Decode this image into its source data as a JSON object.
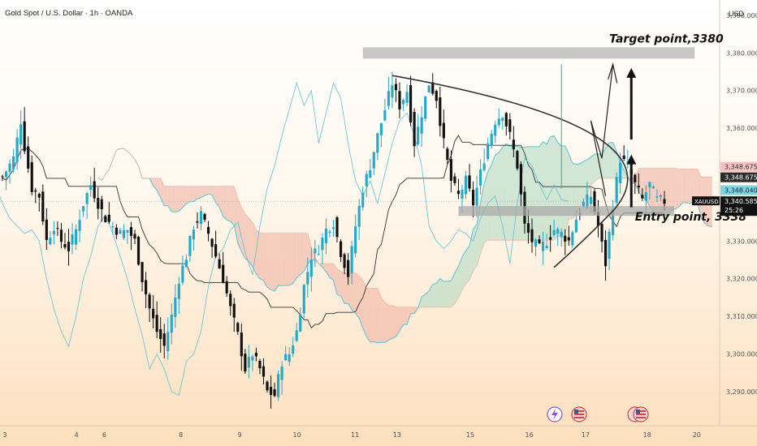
{
  "chart_data": {
    "type": "candlestick",
    "title": "Gold Spot / U.S. Dollar · 1h · OANDA",
    "currency": "USD",
    "symbol": "XAUUSD",
    "y_ticks": [
      3290,
      3300,
      3310,
      3320,
      3330,
      3340,
      3350,
      3360,
      3370,
      3380,
      3390
    ],
    "y_tick_labels": [
      "3,290.000",
      "3,300.000",
      "3,310.000",
      "3,320.000",
      "3,330.000",
      "3,340.000",
      "3,350.000",
      "3,360.000",
      "3,370.000",
      "3,380.000",
      "3,390.000"
    ],
    "ylim": [
      3282,
      3393
    ],
    "x_ticks": [
      "3",
      "4",
      "6",
      "8",
      "9",
      "10",
      "11",
      "13",
      "15",
      "16",
      "17",
      "18",
      "20"
    ],
    "x_tick_bars": [
      3,
      88,
      121,
      212,
      282,
      350,
      419,
      469,
      556,
      626,
      693,
      766,
      825
    ],
    "bar_count": 190,
    "close_path": [
      [
        0,
        3347
      ],
      [
        3,
        3352
      ],
      [
        5,
        3362
      ],
      [
        6,
        3355
      ],
      [
        8,
        3344
      ],
      [
        10,
        3342
      ],
      [
        11,
        3336
      ],
      [
        12,
        3330
      ],
      [
        14,
        3334
      ],
      [
        16,
        3330
      ],
      [
        18,
        3328
      ],
      [
        20,
        3333
      ],
      [
        22,
        3340
      ],
      [
        24,
        3345
      ],
      [
        26,
        3340
      ],
      [
        28,
        3336
      ],
      [
        30,
        3334
      ],
      [
        32,
        3332
      ],
      [
        34,
        3333
      ],
      [
        36,
        3330
      ],
      [
        38,
        3320
      ],
      [
        40,
        3312
      ],
      [
        42,
        3306
      ],
      [
        44,
        3302
      ],
      [
        46,
        3310
      ],
      [
        48,
        3320
      ],
      [
        50,
        3326
      ],
      [
        52,
        3334
      ],
      [
        54,
        3337
      ],
      [
        56,
        3332
      ],
      [
        58,
        3326
      ],
      [
        60,
        3320
      ],
      [
        62,
        3312
      ],
      [
        64,
        3305
      ],
      [
        66,
        3296
      ],
      [
        68,
        3300
      ],
      [
        70,
        3296
      ],
      [
        72,
        3290
      ],
      [
        74,
        3289
      ],
      [
        76,
        3298
      ],
      [
        78,
        3300
      ],
      [
        80,
        3306
      ],
      [
        82,
        3318
      ],
      [
        84,
        3326
      ],
      [
        86,
        3328
      ],
      [
        88,
        3333
      ],
      [
        90,
        3335
      ],
      [
        92,
        3327
      ],
      [
        94,
        3321
      ],
      [
        96,
        3334
      ],
      [
        98,
        3344
      ],
      [
        100,
        3350
      ],
      [
        102,
        3358
      ],
      [
        104,
        3365
      ],
      [
        106,
        3372
      ],
      [
        108,
        3366
      ],
      [
        110,
        3370
      ],
      [
        112,
        3356
      ],
      [
        114,
        3364
      ],
      [
        116,
        3372
      ],
      [
        118,
        3368
      ],
      [
        120,
        3356
      ],
      [
        122,
        3346
      ],
      [
        124,
        3342
      ],
      [
        126,
        3346
      ],
      [
        128,
        3340
      ],
      [
        130,
        3348
      ],
      [
        132,
        3356
      ],
      [
        134,
        3362
      ],
      [
        136,
        3364
      ],
      [
        138,
        3358
      ],
      [
        140,
        3350
      ],
      [
        142,
        3334
      ],
      [
        144,
        3330
      ],
      [
        146,
        3328
      ],
      [
        148,
        3330
      ],
      [
        150,
        3333
      ],
      [
        152,
        3332
      ],
      [
        154,
        3330
      ],
      [
        156,
        3336
      ],
      [
        158,
        3340
      ],
      [
        160,
        3342
      ],
      [
        162,
        3334
      ],
      [
        164,
        3324
      ],
      [
        166,
        3340
      ],
      [
        168,
        3352
      ],
      [
        170,
        3350
      ],
      [
        172,
        3345
      ],
      [
        174,
        3341
      ],
      [
        176,
        3345
      ],
      [
        178,
        3341
      ],
      [
        180,
        3340.585
      ]
    ],
    "levels": {
      "entry": 3338,
      "target": 3380,
      "last_price": 3340.585,
      "price_line": 3340.585
    },
    "annotations": {
      "target_label": "Target point,3380",
      "entry_label": "Entry point, 3338"
    },
    "price_tags": [
      {
        "value": 3348.675,
        "text": "3,348.675",
        "bg": "#f5c1c1",
        "fg": "#333"
      },
      {
        "value": 3348.675,
        "text": "3,348.675",
        "bg": "#2b2b2b",
        "fg": "#ffffff",
        "offset": 13
      },
      {
        "value": 3348.04,
        "text": "3,348.040",
        "bg": "#7fd3e2",
        "fg": "#0b2a33",
        "offset": 26
      }
    ],
    "last_tag": {
      "symbol": "XAUUSD",
      "price": "3,340.585",
      "timer": "25:26"
    },
    "colors": {
      "up": "#26a9c9",
      "down": "#111111",
      "cloud_bull": "#b9dcc5",
      "cloud_bear": "#f0b8a9",
      "kijun": "#333333",
      "cloud_edge": "#5ec2d8",
      "bg_top": "#ffffff",
      "bg_bottom": "#fde3c3"
    },
    "grid": false
  }
}
